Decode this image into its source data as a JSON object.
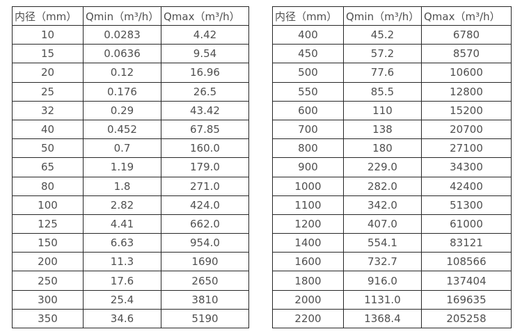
{
  "style": {
    "border_color": "#262626",
    "text_color": "#4f4f4f",
    "background_color": "#ffffff"
  },
  "tables": [
    {
      "id": "small-diameters",
      "headers": [
        "内径（mm）",
        "Qmin（m³/h）",
        "Qmax（m³/h）"
      ],
      "rows": [
        [
          "10",
          "0.0283",
          "4.42"
        ],
        [
          "15",
          "0.0636",
          "9.54"
        ],
        [
          "20",
          "0.12",
          "16.96"
        ],
        [
          "25",
          "0.176",
          "26.5"
        ],
        [
          "32",
          "0.29",
          "43.42"
        ],
        [
          "40",
          "0.452",
          "67.85"
        ],
        [
          "50",
          "0.7",
          "160.0"
        ],
        [
          "65",
          "1.19",
          "179.0"
        ],
        [
          "80",
          "1.8",
          "271.0"
        ],
        [
          "100",
          "2.82",
          "424.0"
        ],
        [
          "125",
          "4.41",
          "662.0"
        ],
        [
          "150",
          "6.63",
          "954.0"
        ],
        [
          "200",
          "11.3",
          "1690"
        ],
        [
          "250",
          "17.6",
          "2650"
        ],
        [
          "300",
          "25.4",
          "3810"
        ],
        [
          "350",
          "34.6",
          "5190"
        ]
      ]
    },
    {
      "id": "large-diameters",
      "headers": [
        "内径（mm）",
        "Qmin（m³/h）",
        "Qmax（m³/h）"
      ],
      "rows": [
        [
          "400",
          "45.2",
          "6780"
        ],
        [
          "450",
          "57.2",
          "8570"
        ],
        [
          "500",
          "77.6",
          "10600"
        ],
        [
          "550",
          "85.5",
          "12800"
        ],
        [
          "600",
          "110",
          "15200"
        ],
        [
          "700",
          "138",
          "20700"
        ],
        [
          "800",
          "180",
          "27100"
        ],
        [
          "900",
          "229.0",
          "34300"
        ],
        [
          "1000",
          "282.0",
          "42400"
        ],
        [
          "1100",
          "342.0",
          "51300"
        ],
        [
          "1200",
          "407.0",
          "61000"
        ],
        [
          "1400",
          "554.1",
          "83121"
        ],
        [
          "1600",
          "732.7",
          "108566"
        ],
        [
          "1800",
          "916.0",
          "137404"
        ],
        [
          "2000",
          "1131.0",
          "169635"
        ],
        [
          "2200",
          "1368.4",
          "205258"
        ]
      ]
    }
  ]
}
